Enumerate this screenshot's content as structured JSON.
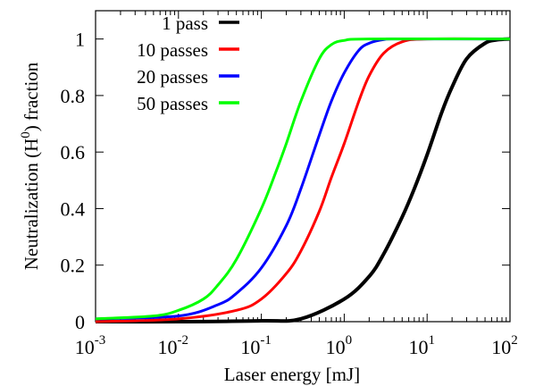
{
  "chart_data": {
    "type": "line",
    "xlabel": "Laser energy [mJ]",
    "ylabel_parts": [
      "Neutralization (H",
      "0",
      ") fraction"
    ],
    "x_scale": "log",
    "xlim": [
      0.001,
      100
    ],
    "ylim": [
      0,
      1.1
    ],
    "grid": false,
    "legend_position": "top-left",
    "x_ticks": [
      {
        "value": 0.001,
        "base": "10",
        "exp": "-3"
      },
      {
        "value": 0.01,
        "base": "10",
        "exp": "-2"
      },
      {
        "value": 0.1,
        "base": "10",
        "exp": "-1"
      },
      {
        "value": 1,
        "base": "10",
        "exp": "0"
      },
      {
        "value": 10,
        "base": "10",
        "exp": "1"
      },
      {
        "value": 100,
        "base": "10",
        "exp": "2"
      }
    ],
    "y_ticks": [
      {
        "value": 0,
        "label": "0"
      },
      {
        "value": 0.2,
        "label": "0.2"
      },
      {
        "value": 0.4,
        "label": "0.4"
      },
      {
        "value": 0.6,
        "label": "0.6"
      },
      {
        "value": 0.8,
        "label": "0.8"
      },
      {
        "value": 1,
        "label": "1"
      }
    ],
    "series": [
      {
        "name": "1 pass",
        "color": "#000000",
        "x": [
          0.001,
          0.01,
          0.1,
          0.3,
          1,
          2,
          3,
          5,
          7,
          10,
          15,
          20,
          30,
          50,
          70,
          100
        ],
        "y": [
          0.0,
          0.0,
          0.003,
          0.01,
          0.08,
          0.16,
          0.24,
          0.37,
          0.47,
          0.59,
          0.74,
          0.83,
          0.93,
          0.985,
          0.997,
          1.0
        ]
      },
      {
        "name": "10 passes",
        "color": "#ff0000",
        "x": [
          0.001,
          0.01,
          0.05,
          0.1,
          0.2,
          0.3,
          0.5,
          0.7,
          1,
          1.5,
          2,
          3,
          5,
          10,
          100
        ],
        "y": [
          0.0,
          0.01,
          0.04,
          0.08,
          0.17,
          0.25,
          0.39,
          0.51,
          0.63,
          0.78,
          0.87,
          0.95,
          0.99,
          1.0,
          1.0
        ]
      },
      {
        "name": "20 passes",
        "color": "#0000ff",
        "x": [
          0.001,
          0.01,
          0.03,
          0.05,
          0.1,
          0.2,
          0.3,
          0.5,
          0.7,
          1,
          1.5,
          2,
          3,
          5,
          100
        ],
        "y": [
          0.01,
          0.02,
          0.06,
          0.1,
          0.19,
          0.34,
          0.47,
          0.66,
          0.78,
          0.88,
          0.96,
          0.985,
          0.998,
          1.0,
          1.0
        ]
      },
      {
        "name": "50 passes",
        "color": "#00ff00",
        "x": [
          0.001,
          0.005,
          0.01,
          0.02,
          0.03,
          0.05,
          0.1,
          0.15,
          0.2,
          0.3,
          0.5,
          0.7,
          1,
          2,
          100
        ],
        "y": [
          0.01,
          0.02,
          0.04,
          0.08,
          0.13,
          0.22,
          0.4,
          0.53,
          0.63,
          0.78,
          0.93,
          0.98,
          0.995,
          1.0,
          1.0
        ]
      }
    ]
  }
}
